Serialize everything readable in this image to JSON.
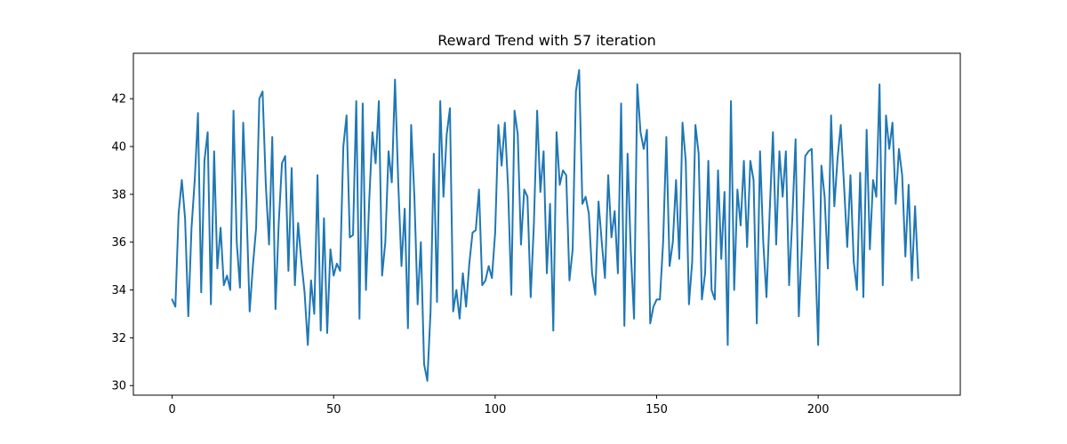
{
  "chart_data": {
    "type": "line",
    "title": "Reward Trend with 57 iteration",
    "xlabel": "",
    "ylabel": "",
    "xlim": [
      -12,
      244
    ],
    "ylim": [
      29.6,
      43.9
    ],
    "xticks": [
      0,
      50,
      100,
      150,
      200
    ],
    "yticks": [
      30,
      32,
      34,
      36,
      38,
      40,
      42
    ],
    "grid": false,
    "legend": "none",
    "series": [
      {
        "color": "#1f77b4",
        "x": [
          0,
          1,
          2,
          3,
          4,
          5,
          6,
          7,
          8,
          9,
          10,
          11,
          12,
          13,
          14,
          15,
          16,
          17,
          18,
          19,
          20,
          21,
          22,
          23,
          24,
          25,
          26,
          27,
          28,
          29,
          30,
          31,
          32,
          33,
          34,
          35,
          36,
          37,
          38,
          39,
          40,
          41,
          42,
          43,
          44,
          45,
          46,
          47,
          48,
          49,
          50,
          51,
          52,
          53,
          54,
          55,
          56,
          57,
          58,
          59,
          60,
          61,
          62,
          63,
          64,
          65,
          66,
          67,
          68,
          69,
          70,
          71,
          72,
          73,
          74,
          75,
          76,
          77,
          78,
          79,
          80,
          81,
          82,
          83,
          84,
          85,
          86,
          87,
          88,
          89,
          90,
          91,
          92,
          93,
          94,
          95,
          96,
          97,
          98,
          99,
          100,
          101,
          102,
          103,
          104,
          105,
          106,
          107,
          108,
          109,
          110,
          111,
          112,
          113,
          114,
          115,
          116,
          117,
          118,
          119,
          120,
          121,
          122,
          123,
          124,
          125,
          126,
          127,
          128,
          129,
          130,
          131,
          132,
          133,
          134,
          135,
          136,
          137,
          138,
          139,
          140,
          141,
          142,
          143,
          144,
          145,
          146,
          147,
          148,
          149,
          150,
          151,
          152,
          153,
          154,
          155,
          156,
          157,
          158,
          159,
          160,
          161,
          162,
          163,
          164,
          165,
          166,
          167,
          168,
          169,
          170,
          171,
          172,
          173,
          174,
          175,
          176,
          177,
          178,
          179,
          180,
          181,
          182,
          183,
          184,
          185,
          186,
          187,
          188,
          189,
          190,
          191,
          192,
          193,
          194,
          195,
          196,
          197,
          198,
          199,
          200,
          201,
          202,
          203,
          204,
          205,
          206,
          207,
          208,
          209,
          210,
          211,
          212,
          213,
          214,
          215,
          216,
          217,
          218,
          219,
          220,
          221,
          222,
          223,
          224,
          225,
          226,
          227,
          228,
          229,
          230,
          231
        ],
        "values": [
          33.6,
          33.3,
          37.2,
          38.6,
          37.0,
          32.9,
          36.6,
          38.6,
          41.4,
          33.9,
          39.4,
          40.6,
          33.4,
          39.8,
          34.9,
          36.6,
          34.2,
          34.6,
          34.0,
          41.5,
          36.0,
          34.1,
          41.0,
          37.5,
          33.1,
          35.0,
          36.6,
          42.0,
          42.3,
          38.4,
          35.9,
          40.4,
          33.2,
          36.8,
          39.3,
          39.6,
          34.8,
          39.1,
          34.2,
          36.8,
          35.2,
          33.9,
          31.7,
          34.4,
          33.0,
          38.8,
          32.3,
          37.0,
          32.2,
          35.7,
          34.6,
          35.1,
          34.8,
          40.0,
          41.3,
          36.2,
          36.3,
          41.9,
          32.8,
          41.8,
          34.0,
          37.7,
          40.6,
          39.3,
          41.9,
          34.6,
          36.0,
          39.8,
          38.5,
          42.8,
          38.5,
          35.0,
          37.4,
          32.4,
          40.9,
          37.9,
          33.4,
          36.0,
          30.9,
          30.2,
          33.1,
          39.7,
          33.5,
          41.9,
          37.9,
          40.5,
          41.6,
          33.1,
          34.0,
          32.8,
          34.7,
          33.3,
          35.1,
          36.4,
          36.5,
          38.2,
          34.2,
          34.4,
          35.0,
          34.5,
          36.4,
          40.9,
          39.2,
          41.0,
          38.3,
          33.8,
          41.5,
          40.5,
          35.9,
          38.2,
          37.9,
          33.7,
          36.8,
          41.5,
          38.1,
          39.8,
          34.7,
          37.6,
          32.3,
          40.6,
          38.4,
          39.0,
          38.8,
          34.4,
          35.7,
          42.3,
          43.2,
          37.6,
          37.9,
          37.2,
          34.7,
          33.8,
          37.7,
          36.0,
          34.5,
          38.8,
          36.2,
          37.3,
          34.7,
          41.8,
          32.5,
          39.7,
          35.6,
          32.8,
          42.6,
          40.6,
          39.9,
          40.7,
          32.6,
          33.3,
          33.6,
          33.6,
          36.0,
          40.4,
          35.0,
          36.0,
          38.6,
          35.3,
          41.0,
          39.4,
          33.4,
          35.2,
          40.9,
          39.7,
          33.6,
          34.7,
          39.4,
          34.0,
          33.6,
          39.0,
          35.3,
          38.1,
          31.7,
          41.9,
          34.0,
          38.2,
          36.7,
          39.4,
          35.8,
          39.4,
          38.6,
          32.6,
          39.8,
          36.0,
          33.7,
          37.3,
          40.6,
          35.9,
          39.8,
          37.9,
          39.8,
          34.2,
          37.0,
          40.3,
          32.9,
          35.9,
          39.6,
          39.8,
          39.9,
          35.8,
          31.7,
          39.2,
          37.9,
          34.9,
          41.3,
          37.5,
          39.5,
          40.9,
          38.4,
          35.8,
          38.8,
          35.2,
          34.0,
          38.9,
          33.7,
          40.7,
          35.7,
          38.6,
          37.9,
          42.6,
          34.2,
          41.3,
          39.9,
          41.0,
          37.6,
          39.9,
          38.8,
          35.4,
          38.4,
          34.4,
          37.5,
          34.5
        ]
      }
    ]
  }
}
